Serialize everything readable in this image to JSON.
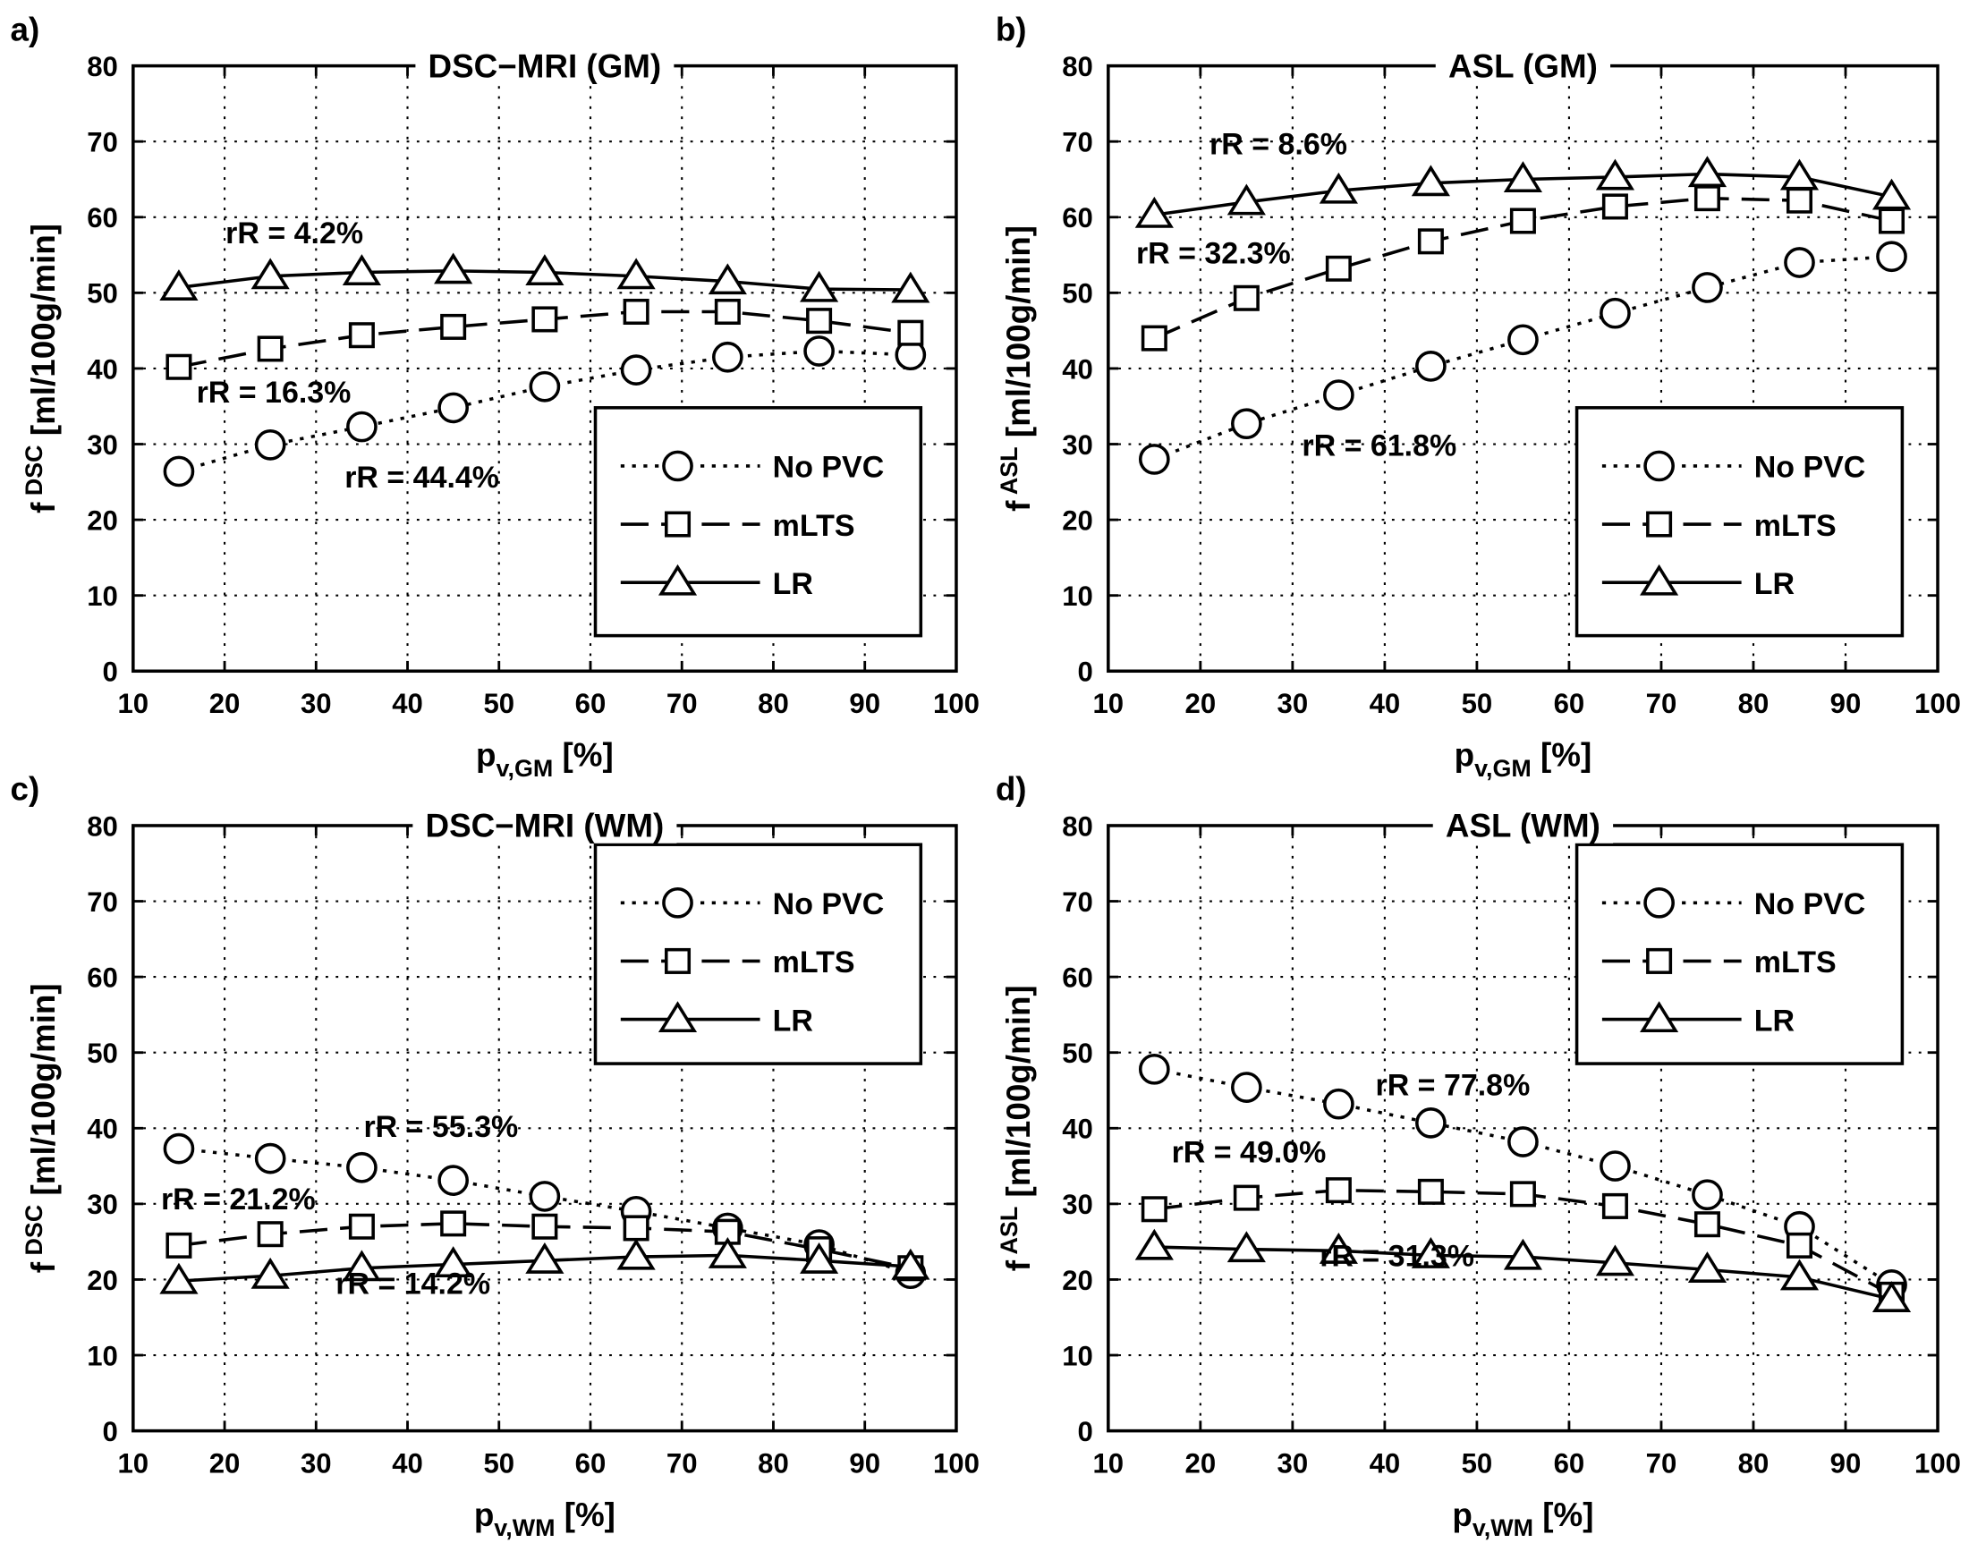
{
  "chart_data": [
    {
      "type": "line",
      "panel_label": "a)",
      "title": "DSC−MRI (GM)",
      "xlabel": {
        "base": "p",
        "sub": "v,GM",
        "unit": " [%]"
      },
      "ylabel": {
        "base": "f",
        "sup": "DSC",
        "unit": " [ml/100g/min]"
      },
      "xlim": [
        10,
        100
      ],
      "ylim": [
        0,
        80
      ],
      "grid": true,
      "legend_position": "bottom-right",
      "x": [
        15,
        25,
        35,
        45,
        55,
        65,
        75,
        85,
        95
      ],
      "series": [
        {
          "name": "No PVC",
          "style": "dotted-circle",
          "values": [
            26.4,
            29.9,
            32.3,
            34.8,
            37.6,
            39.8,
            41.5,
            42.3,
            41.8
          ]
        },
        {
          "name": "mLTS",
          "style": "dashed-square",
          "values": [
            40.2,
            42.6,
            44.4,
            45.5,
            46.5,
            47.5,
            47.5,
            46.3,
            44.7
          ]
        },
        {
          "name": "LR",
          "style": "solid-triangle",
          "values": [
            50.7,
            52.2,
            52.7,
            52.9,
            52.7,
            52.2,
            51.5,
            50.5,
            50.4
          ]
        }
      ],
      "annotations": [
        "rR = 4.2%",
        "rR = 16.3%",
        "rR = 44.4%"
      ]
    },
    {
      "type": "line",
      "panel_label": "b)",
      "title": "ASL (GM)",
      "xlabel": {
        "base": "p",
        "sub": "v,GM",
        "unit": " [%]"
      },
      "ylabel": {
        "base": "f",
        "sup": "ASL",
        "unit": " [ml/100g/min]"
      },
      "xlim": [
        10,
        100
      ],
      "ylim": [
        0,
        80
      ],
      "grid": true,
      "legend_position": "bottom-right",
      "x": [
        15,
        25,
        35,
        45,
        55,
        65,
        75,
        85,
        95
      ],
      "series": [
        {
          "name": "No PVC",
          "style": "dotted-circle",
          "values": [
            28.0,
            32.7,
            36.5,
            40.3,
            43.8,
            47.3,
            50.7,
            54.0,
            54.8
          ]
        },
        {
          "name": "mLTS",
          "style": "dashed-square",
          "values": [
            44.0,
            49.3,
            53.2,
            56.8,
            59.5,
            61.4,
            62.5,
            62.2,
            59.5
          ]
        },
        {
          "name": "LR",
          "style": "solid-triangle",
          "values": [
            60.3,
            62.0,
            63.5,
            64.5,
            65.0,
            65.3,
            65.7,
            65.3,
            62.7
          ]
        }
      ],
      "annotations": [
        "rR = 8.6%",
        "rR = 32.3%",
        "rR = 61.8%"
      ]
    },
    {
      "type": "line",
      "panel_label": "c)",
      "title": "DSC−MRI (WM)",
      "xlabel": {
        "base": "p",
        "sub": "v,WM",
        "unit": " [%]"
      },
      "ylabel": {
        "base": "f",
        "sup": "DSC",
        "unit": " [ml/100g/min]"
      },
      "xlim": [
        10,
        100
      ],
      "ylim": [
        0,
        80
      ],
      "grid": true,
      "legend_position": "top-right",
      "x": [
        15,
        25,
        35,
        45,
        55,
        65,
        75,
        85,
        95
      ],
      "series": [
        {
          "name": "No PVC",
          "style": "dotted-circle",
          "values": [
            37.3,
            36.0,
            34.8,
            33.1,
            31.0,
            29.0,
            26.8,
            24.6,
            20.8
          ]
        },
        {
          "name": "mLTS",
          "style": "dashed-square",
          "values": [
            24.5,
            26.0,
            27.0,
            27.4,
            27.0,
            26.8,
            26.3,
            24.0,
            21.5
          ]
        },
        {
          "name": "LR",
          "style": "solid-triangle",
          "values": [
            19.8,
            20.5,
            21.5,
            22.0,
            22.5,
            23.0,
            23.2,
            22.5,
            21.7
          ]
        }
      ],
      "annotations": [
        "rR = 55.3%",
        "rR = 21.2%",
        "rR = 14.2%"
      ]
    },
    {
      "type": "line",
      "panel_label": "d)",
      "title": "ASL (WM)",
      "xlabel": {
        "base": "p",
        "sub": "v,WM",
        "unit": " [%]"
      },
      "ylabel": {
        "base": "f",
        "sup": "ASL",
        "unit": " [ml/100g/min]"
      },
      "xlim": [
        10,
        100
      ],
      "ylim": [
        0,
        80
      ],
      "grid": true,
      "legend_position": "top-right",
      "x": [
        15,
        25,
        35,
        45,
        55,
        65,
        75,
        85,
        95
      ],
      "series": [
        {
          "name": "No PVC",
          "style": "dotted-circle",
          "values": [
            47.8,
            45.4,
            43.2,
            40.7,
            38.2,
            35.0,
            31.2,
            27.0,
            19.3
          ]
        },
        {
          "name": "mLTS",
          "style": "dashed-square",
          "values": [
            29.3,
            30.8,
            31.8,
            31.6,
            31.3,
            29.7,
            27.3,
            24.5,
            18.0
          ]
        },
        {
          "name": "LR",
          "style": "solid-triangle",
          "values": [
            24.3,
            24.0,
            23.8,
            23.2,
            23.0,
            22.2,
            21.3,
            20.3,
            17.4
          ]
        }
      ],
      "annotations": [
        "rR = 77.8%",
        "rR = 49.0%",
        "rR = 31.3%"
      ]
    }
  ]
}
